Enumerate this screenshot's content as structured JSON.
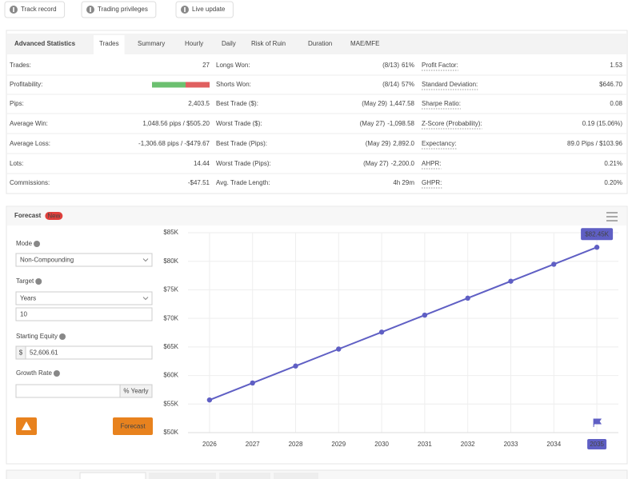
{
  "toolbar": [
    "Track record",
    "Trading privileges",
    "Live update"
  ],
  "stats": {
    "tabs": [
      "Advanced Statistics",
      "Trades",
      "Summary",
      "Hourly",
      "Daily",
      "Risk of Ruin",
      "Duration",
      "MAE/MFE"
    ],
    "rows": [
      [
        {
          "label": "Trades:",
          "value": "27"
        },
        {
          "label": "Longs Won:",
          "note": "(8/13)",
          "value": "61%"
        },
        {
          "label": "Profit Factor:",
          "value": "1.53"
        }
      ],
      [
        {
          "label": "Profitability:"
        },
        {
          "label": "Shorts Won:",
          "note": "(8/14)",
          "value": "57%"
        },
        {
          "label": "Standard Deviation:",
          "value": "$646.70"
        }
      ],
      [
        {
          "label": "Pips:",
          "value": "2,403.5"
        },
        {
          "label": "Best Trade ($):",
          "note": "(May 29)",
          "value": "1,447.58"
        },
        {
          "label": "Sharpe Ratio:",
          "value": "0.08"
        }
      ],
      [
        {
          "label": "Average Win:",
          "value": "1,048.56 pips / $505.20"
        },
        {
          "label": "Worst Trade ($):",
          "note": "(May 27)",
          "value": "-1,098.58"
        },
        {
          "label": "Z-Score (Probability):",
          "value": "0.19 (15.06%)"
        }
      ],
      [
        {
          "label": "Average Loss:",
          "value": "-1,306.68 pips / -$479.67"
        },
        {
          "label": "Best Trade (Pips):",
          "note": "(May 29)",
          "value": "2,892.0"
        },
        {
          "label": "Expectancy:",
          "value": "89.0 Pips / $103.96"
        }
      ],
      [
        {
          "label": "Lots:",
          "value": "14.44"
        },
        {
          "label": "Worst Trade (Pips):",
          "note": "(May 27)",
          "value": "-2,200.0"
        },
        {
          "label": "AHPR:",
          "value": "0.21%"
        }
      ],
      [
        {
          "label": "Commissions:",
          "value": "-$47.51"
        },
        {
          "label": "Avg. Trade Length:",
          "value": "4h 29m"
        },
        {
          "label": "GHPR:",
          "value": "0.20%"
        }
      ]
    ]
  },
  "forecast": {
    "title": "Forecast",
    "badge": "New",
    "mode_label": "Mode",
    "mode": "Non-Compounding",
    "target_label": "Target",
    "target_unit": "Years",
    "target_value": "10",
    "equity_label": "Starting Equity",
    "currency": "$",
    "equity": "52,606.61",
    "growth_label": "Growth Rate",
    "growth_unit": "% Yearly",
    "button": "Forecast"
  },
  "chart_data": {
    "type": "line",
    "categories": [
      "2026",
      "2027",
      "2028",
      "2029",
      "2030",
      "2031",
      "2032",
      "2033",
      "2034",
      "2035"
    ],
    "series": [
      {
        "name": "Forecast",
        "color": "#5f5fc4",
        "values": [
          55720,
          58690,
          61660,
          64630,
          67600,
          70570,
          73540,
          76510,
          79480,
          82450
        ],
        "value_labels": [
          null,
          null,
          null,
          null,
          null,
          null,
          null,
          null,
          null,
          "$82.45K"
        ]
      }
    ],
    "ylim": [
      50000,
      85000
    ],
    "yticks": [
      {
        "value": 50000,
        "label": "$50K"
      },
      {
        "value": 55000,
        "label": "$55K"
      },
      {
        "value": 60000,
        "label": "$60K"
      },
      {
        "value": 65000,
        "label": "$65K"
      },
      {
        "value": 70000,
        "label": "$70K"
      },
      {
        "value": 75000,
        "label": "$75K"
      },
      {
        "value": 80000,
        "label": "$80K"
      },
      {
        "value": 85000,
        "label": "$85K"
      }
    ],
    "grid": true
  }
}
